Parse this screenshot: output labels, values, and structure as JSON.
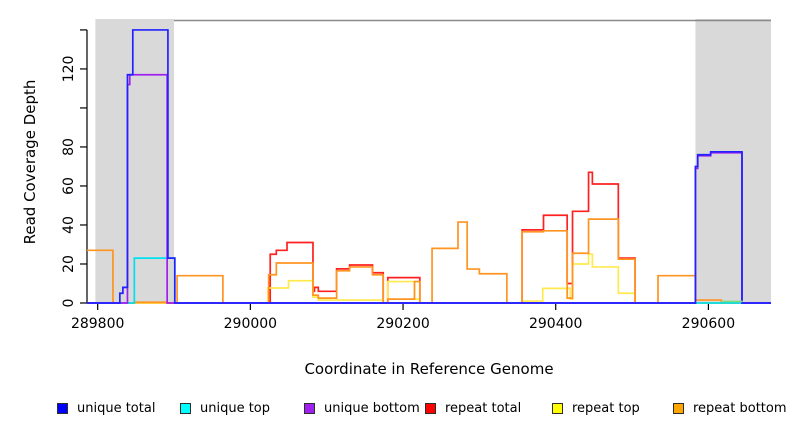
{
  "figure": {
    "x_axis_title": "Coordinate in Reference Genome",
    "y_axis_title": "Read Coverage Depth"
  },
  "chart_data": {
    "type": "line",
    "subtype": "step-coverage-plot",
    "title": "",
    "xlabel": "Coordinate in Reference Genome",
    "ylabel": "Read Coverage Depth",
    "xlim": [
      289786,
      290682
    ],
    "ylim": [
      0,
      145.6
    ],
    "grid": "off",
    "legend_position": "bottom",
    "x_ticks": {
      "values": [
        289800,
        290000,
        290200,
        290400,
        290600
      ],
      "labels": [
        "289800",
        "290000",
        "290200",
        "290400",
        "290600"
      ]
    },
    "y_ticks": {
      "values": [
        0,
        20,
        40,
        60,
        80,
        100,
        120,
        140
      ],
      "labels": [
        "0",
        "20",
        "40",
        "60",
        "80",
        "",
        "120",
        ""
      ]
    },
    "shaded_regions": [
      {
        "name": "left-gray-band",
        "from": 289797,
        "to": 289900,
        "color": "#d9d9d9"
      },
      {
        "name": "right-gray-band",
        "from": 290583,
        "to": 290682,
        "color": "#d9d9d9"
      }
    ],
    "top_border_line": {
      "from": 289900,
      "to": 290682,
      "color": "#8a8a8a"
    },
    "series": [
      {
        "name": "repeat total",
        "color": "#ff2020",
        "steps": [
          [
            289786,
            0
          ],
          [
            290026,
            25
          ],
          [
            290034,
            27
          ],
          [
            290048,
            31
          ],
          [
            290082,
            6
          ],
          [
            290084,
            8
          ],
          [
            290089,
            6
          ],
          [
            290113,
            17.5
          ],
          [
            290130,
            19.5
          ],
          [
            290160,
            15.5
          ],
          [
            290174,
            0
          ],
          [
            290180,
            13
          ],
          [
            290222,
            0
          ],
          [
            290356,
            37.5
          ],
          [
            290384,
            45
          ],
          [
            290415,
            10
          ],
          [
            290422,
            47
          ],
          [
            290443,
            67
          ],
          [
            290448,
            61
          ],
          [
            290482,
            23
          ],
          [
            290504,
            0
          ]
        ]
      },
      {
        "name": "repeat top",
        "color": "#ffe94d",
        "steps": [
          [
            289786,
            0
          ],
          [
            290023,
            7.7
          ],
          [
            290050,
            11.4
          ],
          [
            290082,
            3
          ],
          [
            290089,
            1.5
          ],
          [
            290174,
            0
          ],
          [
            290180,
            11
          ],
          [
            290215,
            2
          ],
          [
            290222,
            0
          ],
          [
            290356,
            1
          ],
          [
            290383,
            7.5
          ],
          [
            290419,
            2
          ],
          [
            290422,
            20
          ],
          [
            290443,
            25
          ],
          [
            290448,
            18.5
          ],
          [
            290482,
            5
          ],
          [
            290504,
            0
          ]
        ]
      },
      {
        "name": "repeat bottom",
        "color": "#ff9420",
        "steps": [
          [
            289786,
            27
          ],
          [
            289820,
            0
          ],
          [
            289848,
            0.4
          ],
          [
            289891,
            0
          ],
          [
            289904,
            14
          ],
          [
            289964,
            0
          ],
          [
            290024,
            14.5
          ],
          [
            290034,
            20.5
          ],
          [
            290082,
            4
          ],
          [
            290089,
            2.5
          ],
          [
            290113,
            16.5
          ],
          [
            290130,
            18.5
          ],
          [
            290160,
            14.5
          ],
          [
            290174,
            0
          ],
          [
            290180,
            2
          ],
          [
            290215,
            11
          ],
          [
            290222,
            0
          ],
          [
            290238,
            28
          ],
          [
            290272,
            41.5
          ],
          [
            290284,
            17.4
          ],
          [
            290300,
            15
          ],
          [
            290336,
            0
          ],
          [
            290356,
            36.5
          ],
          [
            290384,
            37
          ],
          [
            290415,
            2.5
          ],
          [
            290422,
            25.5
          ],
          [
            290443,
            43
          ],
          [
            290482,
            22.5
          ],
          [
            290504,
            0
          ],
          [
            290534,
            14
          ],
          [
            290583,
            1.5
          ],
          [
            290617,
            0
          ]
        ]
      },
      {
        "name": "unique top",
        "color": "#00e0f0",
        "steps": [
          [
            289786,
            0
          ],
          [
            289848,
            23
          ],
          [
            289901,
            0
          ]
        ]
      },
      {
        "name": "unique bottom",
        "color": "#a020f0",
        "steps": [
          [
            289786,
            0
          ],
          [
            289839,
            112
          ],
          [
            289842,
            117
          ],
          [
            289891,
            0
          ],
          [
            290583,
            69
          ],
          [
            290586,
            75.5
          ],
          [
            290603,
            77
          ],
          [
            290644,
            0
          ]
        ]
      },
      {
        "name": "unique total",
        "color": "#2222ff",
        "steps": [
          [
            289786,
            0
          ],
          [
            289829,
            5
          ],
          [
            289833,
            8
          ],
          [
            289839,
            117
          ],
          [
            289846,
            140
          ],
          [
            289892,
            23
          ],
          [
            289901,
            0
          ],
          [
            290583,
            70
          ],
          [
            290586,
            76
          ],
          [
            290603,
            77.5
          ],
          [
            290644,
            0
          ]
        ]
      }
    ],
    "artifact_segments": [
      {
        "name": "cyan-yellow-overlap",
        "color": "#7fd97f",
        "points": [
          [
            290617,
            0.8
          ],
          [
            290645,
            0.8
          ]
        ]
      }
    ],
    "legend": [
      {
        "label": "unique total",
        "color": "#0000ff"
      },
      {
        "label": "unique top",
        "color": "#00ffff"
      },
      {
        "label": "unique bottom",
        "color": "#a020f0"
      },
      {
        "label": "repeat total",
        "color": "#ff0000"
      },
      {
        "label": "repeat top",
        "color": "#ffff00"
      },
      {
        "label": "repeat bottom",
        "color": "#ffa500"
      }
    ]
  }
}
